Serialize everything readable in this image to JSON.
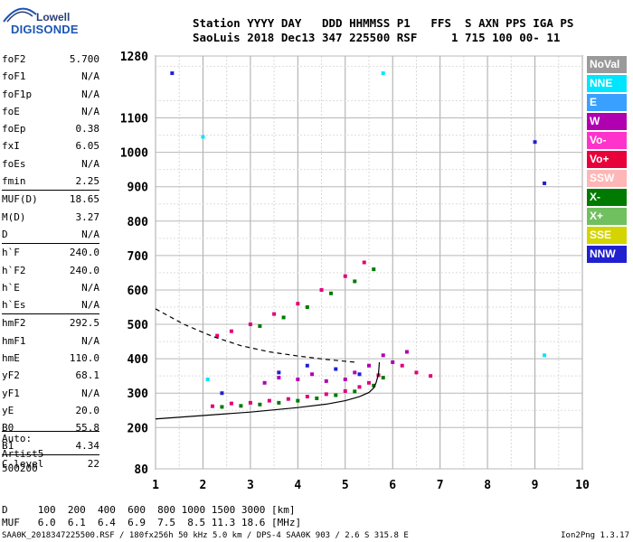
{
  "logo": {
    "line1": "Lowell",
    "line2": "DIGISONDE"
  },
  "header": {
    "line1": "Station YYYY DAY   DDD HHMMSS P1   FFS  S AXN PPS IGA PS",
    "line2": "SaoLuis 2018 Dec13 347 225500 RSF     1 715 100 00- 11"
  },
  "params": [
    {
      "name": "foF2",
      "value": "5.700"
    },
    {
      "name": "foF1",
      "value": "N/A"
    },
    {
      "name": "foF1p",
      "value": "N/A"
    },
    {
      "name": "foE",
      "value": "N/A"
    },
    {
      "name": "foEp",
      "value": "0.38"
    },
    {
      "name": "fxI",
      "value": "6.05"
    },
    {
      "name": "foEs",
      "value": "N/A"
    },
    {
      "name": "fmin",
      "value": "2.25",
      "sep_after": true
    },
    {
      "name": "MUF(D)",
      "value": "18.65"
    },
    {
      "name": "M(D)",
      "value": "3.27"
    },
    {
      "name": "D",
      "value": "N/A",
      "sep_after": true
    },
    {
      "name": "h`F",
      "value": "240.0"
    },
    {
      "name": "h`F2",
      "value": "240.0"
    },
    {
      "name": "h`E",
      "value": "N/A"
    },
    {
      "name": "h`Es",
      "value": "N/A",
      "sep_after": true
    },
    {
      "name": "hmF2",
      "value": "292.5"
    },
    {
      "name": "hmF1",
      "value": "N/A"
    },
    {
      "name": "hmE",
      "value": "110.0"
    },
    {
      "name": "yF2",
      "value": "68.1"
    },
    {
      "name": "yF1",
      "value": "N/A"
    },
    {
      "name": "yE",
      "value": "20.0"
    },
    {
      "name": "B0",
      "value": "55.8"
    },
    {
      "name": "B1",
      "value": "4.34",
      "sep_after": true
    },
    {
      "name": "C-level",
      "value": "22"
    }
  ],
  "auto": {
    "line1": "Auto:",
    "line2": "Artist5",
    "line3": "500200"
  },
  "dtable": {
    "row1": "D     100  200  400  600  800 1000 1500 3000 [km]",
    "row2": "MUF   6.0  6.1  6.4  6.9  7.5  8.5 11.3 18.6 [MHz]"
  },
  "footer": "SAA0K_2018347225500.RSF / 180fx256h 50 kHz 5.0 km / DPS-4 SAA0K 903 / 2.6 S 315.8 E",
  "version": "Ion2Png 1.3.17",
  "legend": [
    {
      "label": "NoVal",
      "color": "#9a9a9a"
    },
    {
      "label": "NNE",
      "color": "#00e5ff"
    },
    {
      "label": "E",
      "color": "#3aa0ff"
    },
    {
      "label": "W",
      "color": "#b000b0"
    },
    {
      "label": "Vo-",
      "color": "#ff33cc"
    },
    {
      "label": "Vo+",
      "color": "#e8003a"
    },
    {
      "label": "SSW",
      "color": "#ffb6b6"
    },
    {
      "label": "X-",
      "color": "#007a00"
    },
    {
      "label": "X+",
      "color": "#70c060"
    },
    {
      "label": "SSE",
      "color": "#d4d400"
    },
    {
      "label": "NNW",
      "color": "#2020d0"
    }
  ],
  "chart_data": {
    "type": "scatter",
    "x_ticks": [
      1,
      2,
      3,
      4,
      5,
      6,
      7,
      8,
      9,
      10
    ],
    "y_ticks": [
      80,
      200,
      300,
      400,
      500,
      600,
      700,
      800,
      900,
      1000,
      1100,
      1280
    ],
    "xlim": [
      1,
      10
    ],
    "ylim": [
      80,
      1280
    ],
    "grid": true,
    "series": [
      {
        "color": "#e0007a",
        "points": [
          [
            2.2,
            262
          ],
          [
            2.6,
            270
          ],
          [
            3.0,
            272
          ],
          [
            3.4,
            278
          ],
          [
            3.8,
            283
          ],
          [
            4.2,
            290
          ],
          [
            4.6,
            297
          ],
          [
            5.0,
            306
          ],
          [
            5.3,
            318
          ],
          [
            5.5,
            330
          ],
          [
            5.7,
            352
          ],
          [
            2.3,
            467
          ],
          [
            2.6,
            480
          ],
          [
            3.0,
            500
          ],
          [
            3.5,
            530
          ],
          [
            4.0,
            560
          ],
          [
            4.5,
            600
          ],
          [
            5.0,
            640
          ],
          [
            5.4,
            680
          ],
          [
            6.2,
            380
          ],
          [
            6.5,
            360
          ],
          [
            6.8,
            350
          ]
        ]
      },
      {
        "color": "#007a00",
        "points": [
          [
            2.4,
            260
          ],
          [
            2.8,
            263
          ],
          [
            3.2,
            267
          ],
          [
            3.6,
            272
          ],
          [
            4.0,
            278
          ],
          [
            4.4,
            285
          ],
          [
            4.8,
            294
          ],
          [
            5.2,
            305
          ],
          [
            5.6,
            322
          ],
          [
            5.8,
            345
          ],
          [
            3.2,
            495
          ],
          [
            3.7,
            520
          ],
          [
            4.2,
            550
          ],
          [
            4.7,
            590
          ],
          [
            5.2,
            625
          ],
          [
            5.6,
            660
          ]
        ]
      },
      {
        "color": "#b000b0",
        "points": [
          [
            3.3,
            330
          ],
          [
            3.6,
            345
          ],
          [
            4.0,
            340
          ],
          [
            4.3,
            355
          ],
          [
            4.6,
            335
          ],
          [
            5.0,
            340
          ],
          [
            5.2,
            360
          ],
          [
            5.5,
            380
          ],
          [
            5.8,
            410
          ],
          [
            6.0,
            390
          ],
          [
            6.3,
            420
          ]
        ]
      },
      {
        "color": "#2020d0",
        "points": [
          [
            1.35,
            1230
          ],
          [
            3.6,
            360
          ],
          [
            4.2,
            380
          ],
          [
            4.8,
            370
          ],
          [
            5.3,
            355
          ],
          [
            2.4,
            300
          ],
          [
            9.0,
            1030
          ],
          [
            9.2,
            910
          ]
        ]
      },
      {
        "color": "#00e5ff",
        "points": [
          [
            2.0,
            1045
          ],
          [
            5.8,
            1230
          ],
          [
            2.1,
            340
          ],
          [
            9.2,
            410
          ]
        ]
      }
    ]
  }
}
